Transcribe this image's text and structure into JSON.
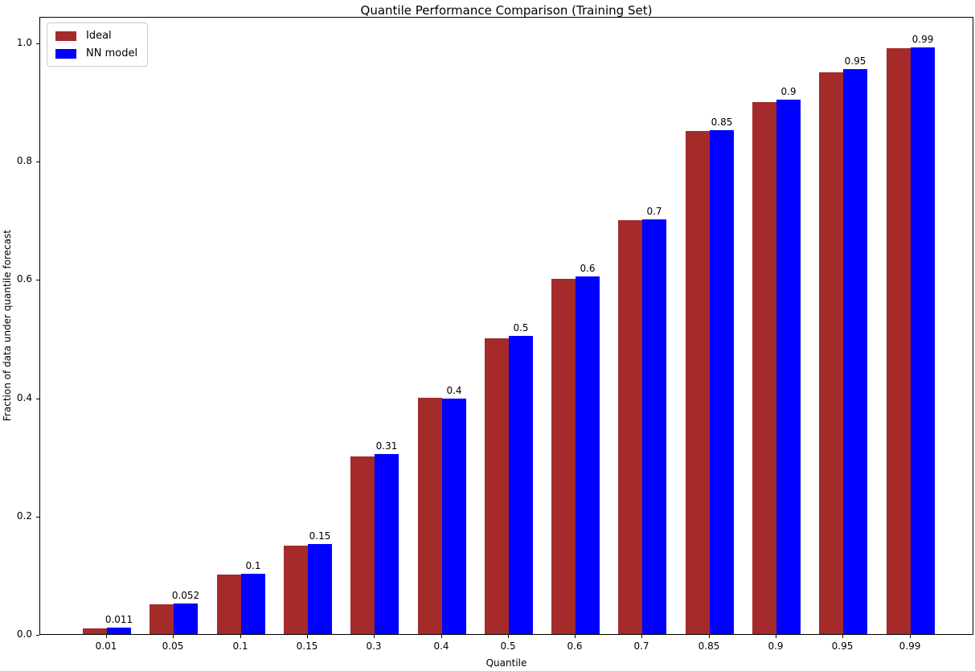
{
  "chart_data": {
    "type": "bar",
    "title": "Quantile Performance Comparison (Training Set)",
    "xlabel": "Quantile",
    "ylabel": "Fraction of data under quantile forecast",
    "categories": [
      "0.01",
      "0.05",
      "0.1",
      "0.15",
      "0.3",
      "0.4",
      "0.5",
      "0.6",
      "0.7",
      "0.85",
      "0.9",
      "0.95",
      "0.99"
    ],
    "series": [
      {
        "name": "Ideal",
        "color": "#a52a2a",
        "values": [
          0.01,
          0.05,
          0.1,
          0.15,
          0.3,
          0.4,
          0.5,
          0.6,
          0.7,
          0.85,
          0.9,
          0.95,
          0.99
        ]
      },
      {
        "name": "NN model",
        "color": "#0000ff",
        "values": [
          0.011,
          0.052,
          0.102,
          0.152,
          0.305,
          0.398,
          0.504,
          0.605,
          0.701,
          0.852,
          0.903,
          0.955,
          0.992
        ],
        "bar_labels": [
          "0.011",
          "0.052",
          "0.1",
          "0.15",
          "0.31",
          "0.4",
          "0.5",
          "0.6",
          "0.7",
          "0.85",
          "0.9",
          "0.95",
          "0.99"
        ]
      }
    ],
    "yticks": [
      "0.0",
      "0.2",
      "0.4",
      "0.6",
      "0.8",
      "1.0"
    ],
    "ytick_values": [
      0.0,
      0.2,
      0.4,
      0.6,
      0.8,
      1.0
    ],
    "ylim": [
      0,
      1.045
    ],
    "grid": false,
    "legend_position": "upper left",
    "text_color": "#000000",
    "background_color": "#ffffff"
  }
}
